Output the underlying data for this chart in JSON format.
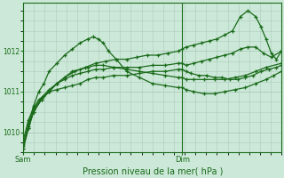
{
  "bg_color": "#cce8d8",
  "plot_bg_color": "#cce8d8",
  "grid_color": "#aaccbb",
  "line_color": "#1a6b1a",
  "marker_color": "#1a6b1a",
  "xlabel": "Pression niveau de la mer( hPa )",
  "xlabel_color": "#1a6b1a",
  "tick_color": "#1a6b1a",
  "ylim": [
    1009.5,
    1013.2
  ],
  "yticks": [
    1010,
    1011,
    1012
  ],
  "vline_x": 0.615,
  "figwidth": 3.2,
  "figheight": 2.0,
  "series": [
    {
      "x": [
        0.0,
        0.02,
        0.04,
        0.06,
        0.08,
        0.1,
        0.13,
        0.16,
        0.19,
        0.22,
        0.25,
        0.28,
        0.31,
        0.35,
        0.4,
        0.45,
        0.5,
        0.55,
        0.6,
        0.615,
        0.63,
        0.65,
        0.68,
        0.71,
        0.74,
        0.77,
        0.8,
        0.83,
        0.86,
        0.89,
        0.92,
        0.95,
        0.98,
        1.0
      ],
      "y": [
        1009.8,
        1010.3,
        1010.6,
        1010.8,
        1010.9,
        1011.0,
        1011.05,
        1011.1,
        1011.15,
        1011.2,
        1011.3,
        1011.35,
        1011.35,
        1011.4,
        1011.4,
        1011.45,
        1011.5,
        1011.5,
        1011.55,
        1011.55,
        1011.5,
        1011.45,
        1011.4,
        1011.4,
        1011.35,
        1011.35,
        1011.3,
        1011.3,
        1011.35,
        1011.4,
        1011.5,
        1011.55,
        1011.6,
        1011.65
      ]
    },
    {
      "x": [
        0.0,
        0.02,
        0.04,
        0.06,
        0.08,
        0.1,
        0.13,
        0.16,
        0.19,
        0.22,
        0.25,
        0.27,
        0.29,
        0.31,
        0.33,
        0.36,
        0.4,
        0.45,
        0.5,
        0.55,
        0.6,
        0.615,
        0.63,
        0.66,
        0.7,
        0.74,
        0.78,
        0.82,
        0.86,
        0.9,
        0.94,
        0.97,
        1.0
      ],
      "y": [
        1009.7,
        1010.2,
        1010.65,
        1011.0,
        1011.2,
        1011.5,
        1011.7,
        1011.9,
        1012.05,
        1012.2,
        1012.3,
        1012.35,
        1012.3,
        1012.2,
        1012.0,
        1011.8,
        1011.5,
        1011.35,
        1011.2,
        1011.15,
        1011.1,
        1011.1,
        1011.05,
        1011.0,
        1010.95,
        1010.95,
        1011.0,
        1011.05,
        1011.1,
        1011.2,
        1011.3,
        1011.4,
        1011.5
      ]
    },
    {
      "x": [
        0.0,
        0.02,
        0.04,
        0.07,
        0.1,
        0.13,
        0.16,
        0.19,
        0.22,
        0.25,
        0.28,
        0.31,
        0.35,
        0.4,
        0.45,
        0.5,
        0.55,
        0.6,
        0.615,
        0.63,
        0.66,
        0.69,
        0.72,
        0.75,
        0.78,
        0.81,
        0.84,
        0.87,
        0.9,
        0.93,
        0.96,
        1.0
      ],
      "y": [
        1009.6,
        1010.1,
        1010.5,
        1010.8,
        1011.0,
        1011.2,
        1011.3,
        1011.4,
        1011.45,
        1011.5,
        1011.55,
        1011.55,
        1011.6,
        1011.6,
        1011.6,
        1011.65,
        1011.65,
        1011.7,
        1011.7,
        1011.65,
        1011.7,
        1011.75,
        1011.8,
        1011.85,
        1011.9,
        1011.95,
        1012.05,
        1012.1,
        1012.1,
        1011.95,
        1011.85,
        1012.0
      ]
    },
    {
      "x": [
        0.0,
        0.02,
        0.04,
        0.07,
        0.1,
        0.13,
        0.16,
        0.2,
        0.24,
        0.28,
        0.32,
        0.36,
        0.4,
        0.44,
        0.48,
        0.52,
        0.56,
        0.6,
        0.615,
        0.63,
        0.66,
        0.69,
        0.72,
        0.75,
        0.78,
        0.81,
        0.84,
        0.87,
        0.9,
        0.92,
        0.94,
        0.96,
        0.98,
        1.0
      ],
      "y": [
        1009.6,
        1010.1,
        1010.5,
        1010.8,
        1011.0,
        1011.2,
        1011.35,
        1011.5,
        1011.6,
        1011.7,
        1011.75,
        1011.8,
        1011.8,
        1011.85,
        1011.9,
        1011.9,
        1011.95,
        1012.0,
        1012.05,
        1012.1,
        1012.15,
        1012.2,
        1012.25,
        1012.3,
        1012.4,
        1012.5,
        1012.85,
        1013.0,
        1012.85,
        1012.6,
        1012.3,
        1011.95,
        1011.8,
        1012.0
      ]
    },
    {
      "x": [
        0.0,
        0.02,
        0.04,
        0.07,
        0.1,
        0.13,
        0.16,
        0.19,
        0.22,
        0.25,
        0.28,
        0.31,
        0.35,
        0.4,
        0.45,
        0.5,
        0.55,
        0.6,
        0.615,
        0.63,
        0.66,
        0.7,
        0.74,
        0.78,
        0.82,
        0.86,
        0.9,
        0.94,
        1.0
      ],
      "y": [
        1009.65,
        1010.15,
        1010.55,
        1010.85,
        1011.05,
        1011.2,
        1011.35,
        1011.5,
        1011.55,
        1011.6,
        1011.65,
        1011.65,
        1011.6,
        1011.55,
        1011.5,
        1011.45,
        1011.4,
        1011.35,
        1011.35,
        1011.3,
        1011.3,
        1011.3,
        1011.3,
        1011.3,
        1011.35,
        1011.4,
        1011.5,
        1011.6,
        1011.7
      ]
    }
  ]
}
